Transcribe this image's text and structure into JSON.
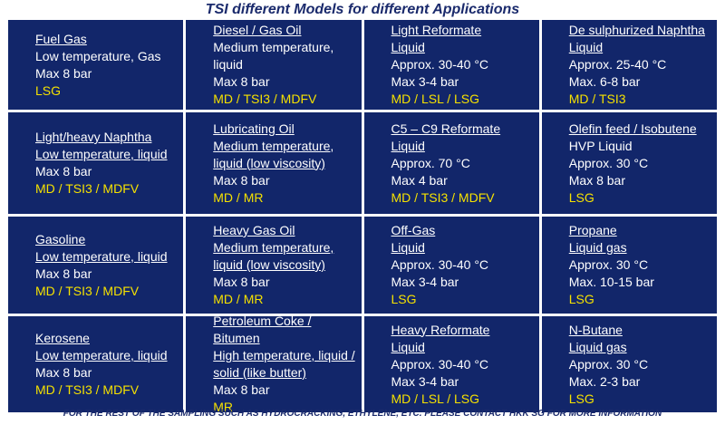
{
  "title": "TSI different Models for different Applications",
  "table": {
    "rows": [
      [
        {
          "heading": [
            "Fuel Gas"
          ],
          "details": [
            "Low temperature, Gas",
            "Max 8 bar"
          ],
          "models": "LSG"
        },
        {
          "heading": [
            "Diesel / Gas Oil"
          ],
          "details": [
            "Medium temperature, liquid",
            "Max 8 bar"
          ],
          "models": "MD / TSI3 / MDFV"
        },
        {
          "heading": [
            "Light Reformate",
            "Liquid"
          ],
          "details": [
            "Approx. 30-40 °C",
            "Max 3-4 bar"
          ],
          "models": "MD / LSL / LSG"
        },
        {
          "heading": [
            "De sulphurized Naphtha",
            "Liquid"
          ],
          "details": [
            "Approx. 25-40 °C",
            "Max. 6-8 bar"
          ],
          "models": "MD / TSI3"
        }
      ],
      [
        {
          "heading": [
            "Light/heavy Naphtha",
            "Low temperature, liquid"
          ],
          "details": [
            "Max 8 bar"
          ],
          "models": "MD / TSI3 / MDFV"
        },
        {
          "heading": [
            "Lubricating Oil",
            "Medium temperature,",
            "liquid (low viscosity)"
          ],
          "details": [
            "Max 8 bar"
          ],
          "models": "MD / MR"
        },
        {
          "heading": [
            "C5 – C9 Reformate",
            "Liquid"
          ],
          "details": [
            "Approx. 70 °C",
            "Max 4 bar"
          ],
          "models": "MD / TSI3 / MDFV"
        },
        {
          "heading": [
            "Olefin feed / Isobutene"
          ],
          "details": [
            "HVP Liquid",
            "Approx. 30 °C",
            "Max 8 bar"
          ],
          "models": "LSG"
        }
      ],
      [
        {
          "heading": [
            "Gasoline",
            "Low temperature, liquid"
          ],
          "details": [
            "Max 8 bar"
          ],
          "models": "MD / TSI3 / MDFV"
        },
        {
          "heading": [
            "Heavy Gas Oil",
            "Medium temperature,",
            "liquid (low viscosity)"
          ],
          "details": [
            "Max 8 bar"
          ],
          "models": "MD / MR"
        },
        {
          "heading": [
            "Off-Gas",
            "Liquid"
          ],
          "details": [
            "Approx. 30-40 °C",
            "Max 3-4 bar"
          ],
          "models": "LSG"
        },
        {
          "heading": [
            "Propane",
            "Liquid gas"
          ],
          "details": [
            "Approx. 30 °C",
            "Max. 10-15 bar"
          ],
          "models": "LSG"
        }
      ],
      [
        {
          "heading": [
            "Kerosene",
            "Low temperature, liquid"
          ],
          "details": [
            "Max 8 bar"
          ],
          "models": "MD / TSI3 / MDFV"
        },
        {
          "heading": [
            "Petroleum Coke / Bitumen",
            "High temperature, liquid /",
            "solid (like butter)"
          ],
          "details": [
            "Max 8 bar"
          ],
          "models": "MR"
        },
        {
          "heading": [
            "Heavy Reformate",
            "Liquid"
          ],
          "details": [
            "Approx. 30-40 °C",
            "Max 3-4 bar"
          ],
          "models": "MD / LSL / LSG"
        },
        {
          "heading": [
            "N-Butane",
            "Liquid gas"
          ],
          "details": [
            "Approx. 30 °C",
            "Max. 2-3 bar"
          ],
          "models": "LSG"
        }
      ]
    ]
  },
  "footer": "FOR THE REST OF THE SAMPLING SUCH AS HYDROCRACKING, ETHYLENE, ETC. PLEASE CONTACT HKK SG FOR MORE INFORMATION"
}
